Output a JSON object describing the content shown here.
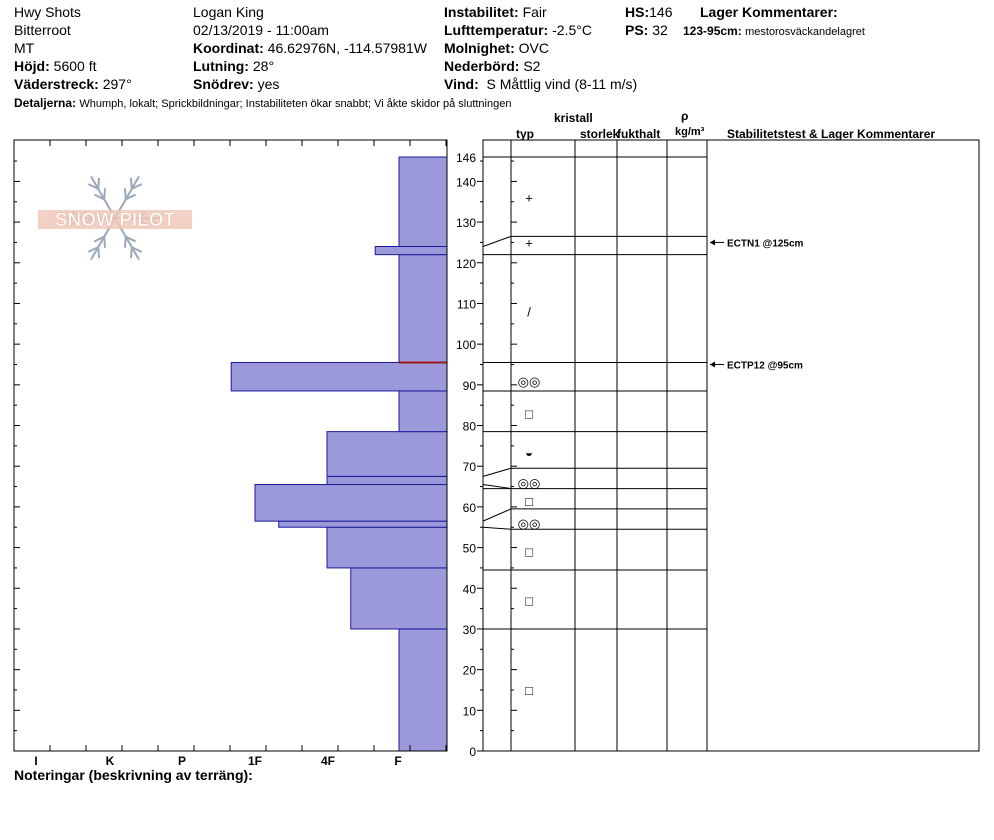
{
  "header": {
    "location": "Hwy Shots",
    "range": "Bitterroot",
    "state": "MT",
    "elevation_label": "Höjd:",
    "elevation": "5600 ft",
    "aspect_label": "Väderstreck:",
    "aspect": "297°",
    "observer": "Logan King",
    "datetime": "02/13/2019 - 11:00am",
    "coord_label": "Koordinat:",
    "coordinates": "46.62976N, -114.57981W",
    "slope_label": "Lutning:",
    "slope": "28°",
    "drift_label": "Snödrev:",
    "drift": "yes",
    "instability_label": "Instabilitet:",
    "instability": "Fair",
    "airtemp_label": "Lufttemperatur:",
    "airtemp": "-2.5°C",
    "sky_label": "Molnighet:",
    "sky": "OVC",
    "precip_label": "Nederbörd:",
    "precip": "S2",
    "wind_label": "Vind:",
    "wind": "S Måttlig vind (8-11 m/s)",
    "hs_label": "HS:",
    "hs": "146",
    "ps_label": "PS:",
    "ps": "32",
    "layer_comments_label": "Lager Kommentarer:",
    "layer_comment_range": "123-95cm:",
    "layer_comment_text": "mestorosväckandelagret",
    "details_label": "Detaljerna:",
    "details": "Whumph, lokalt;  Sprickbildningar;  Instabiliteten ökar snabbt;  Vi åkte skidor på sluttningen",
    "notes_label": "Noteringar (beskrivning av terräng):"
  },
  "logo": {
    "text": "SNOW PILOT"
  },
  "columns": {
    "crystal": "kristall",
    "type": "typ",
    "size": "storlek",
    "moisture": "fukthalt",
    "rho": "ρ",
    "density_unit": "kg/m³",
    "stability": "Stabilitetstest & Lager Kommentarer"
  },
  "colors": {
    "fill": "#9b99d9",
    "stroke": "#1a1a9e",
    "critical": "#a01818"
  },
  "chart_data": {
    "type": "bar",
    "hardness_scale": [
      "I",
      "K",
      "P",
      "1F",
      "4F",
      "F"
    ],
    "y_ticks": [
      0,
      10,
      20,
      30,
      40,
      50,
      60,
      70,
      80,
      90,
      100,
      110,
      120,
      130,
      140,
      146
    ],
    "ylim": [
      0,
      146
    ],
    "layers": [
      {
        "bottom": 0,
        "top": 30,
        "hardness_rank": 0
      },
      {
        "bottom": 30,
        "top": 45,
        "hardness_rank": 0.67
      },
      {
        "bottom": 45,
        "top": 55,
        "hardness_rank": 1
      },
      {
        "bottom": 55,
        "top": 56.5,
        "hardness_rank": 1.67
      },
      {
        "bottom": 56.5,
        "top": 65.5,
        "hardness_rank": 2
      },
      {
        "bottom": 65.5,
        "top": 67.5,
        "hardness_rank": 1
      },
      {
        "bottom": 67.5,
        "top": 78.5,
        "hardness_rank": 1
      },
      {
        "bottom": 78.5,
        "top": 88.5,
        "hardness_rank": 0
      },
      {
        "bottom": 88.5,
        "top": 95.5,
        "hardness_rank": 2.33
      },
      {
        "bottom": 95.5,
        "top": 122,
        "hardness_rank": 0
      },
      {
        "bottom": 122,
        "top": 124,
        "hardness_rank": 0.33
      },
      {
        "bottom": 124,
        "top": 146,
        "hardness_rank": 0
      }
    ],
    "critical_layer": 95.5,
    "boundaries": [
      146,
      126.5,
      122,
      95.5,
      88.5,
      78.5,
      69.5,
      64.5,
      59.5,
      54.5,
      44.5,
      30
    ],
    "grain_symbols": [
      {
        "depth": 136,
        "symbol": "+"
      },
      {
        "depth": 125,
        "symbol": "+"
      },
      {
        "depth": 108,
        "symbol": "/"
      },
      {
        "depth": 91,
        "symbol": "◎◎"
      },
      {
        "depth": 83,
        "symbol": "□"
      },
      {
        "depth": 73.5,
        "symbol": "◒"
      },
      {
        "depth": 66,
        "symbol": "◎◎"
      },
      {
        "depth": 61.5,
        "symbol": "□"
      },
      {
        "depth": 56,
        "symbol": "◎◎"
      },
      {
        "depth": 49,
        "symbol": "□"
      },
      {
        "depth": 37,
        "symbol": "□"
      },
      {
        "depth": 15,
        "symbol": "□"
      }
    ],
    "stability_tests": [
      {
        "depth": 125,
        "label": "ECTN1 @125cm"
      },
      {
        "depth": 95,
        "label": "ECTP12 @95cm"
      }
    ]
  }
}
